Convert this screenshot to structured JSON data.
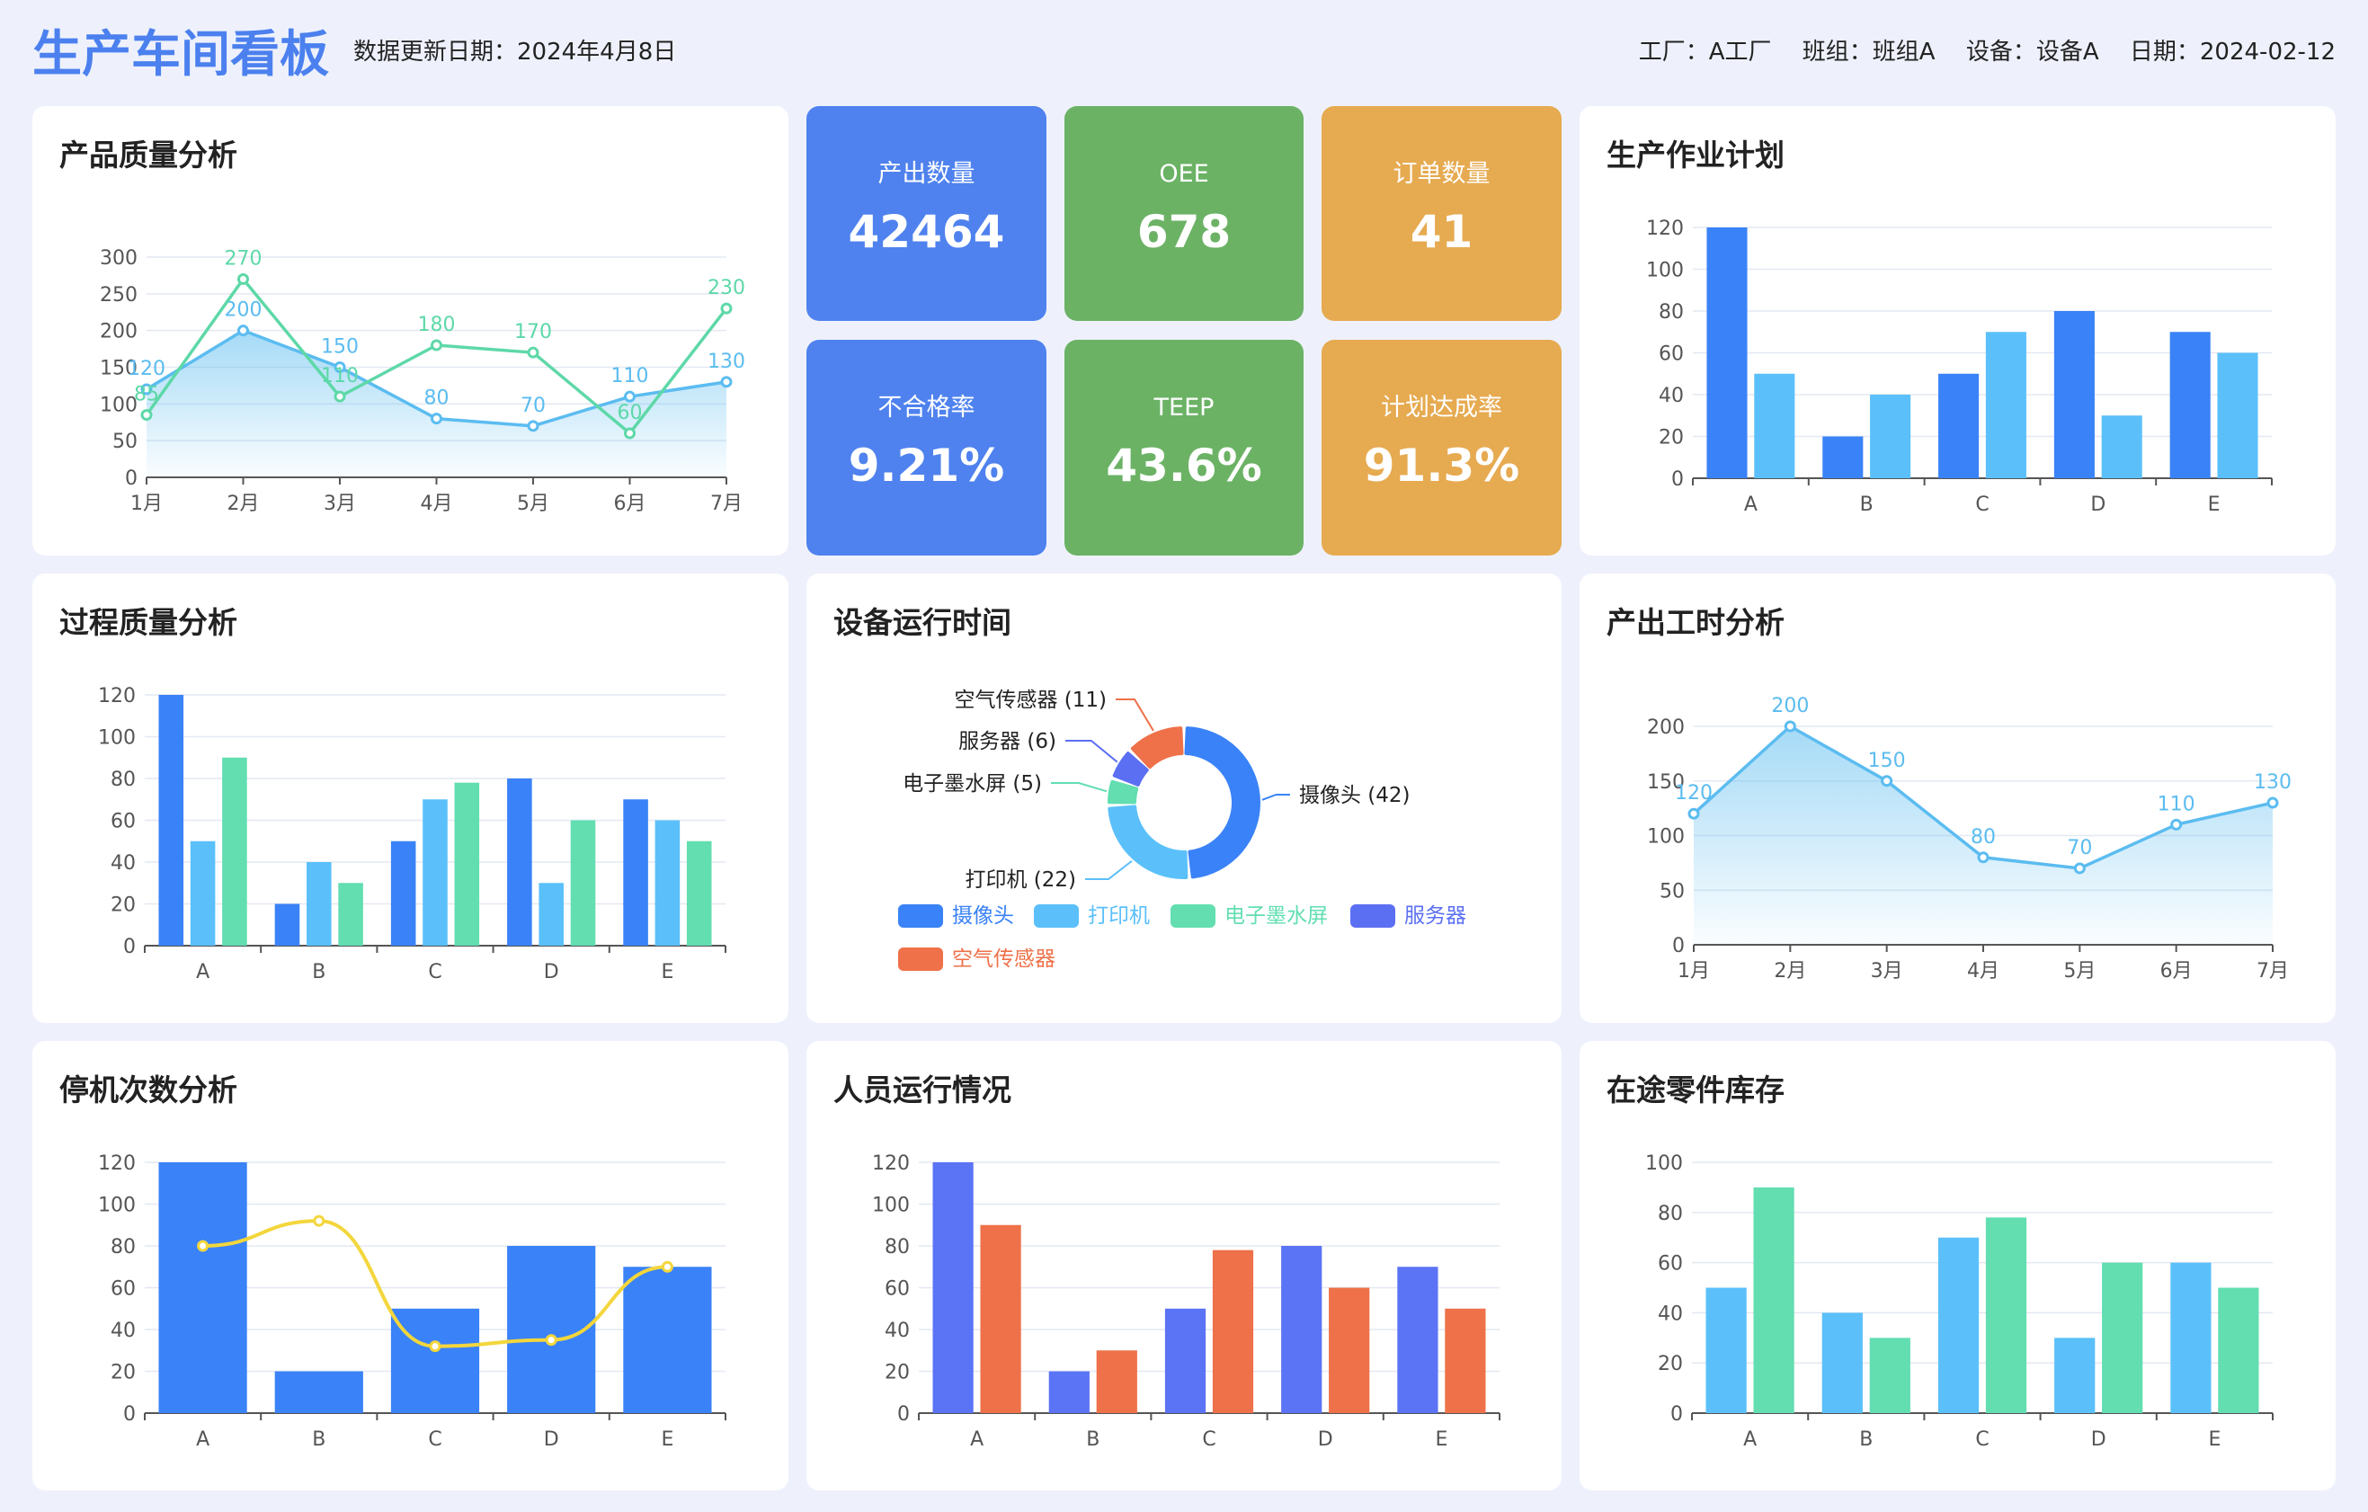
{
  "header": {
    "title": "生产车间看板",
    "update_date": "数据更新日期：2024年4月8日",
    "factory": "工厂：A工厂",
    "team": "班组：班组A",
    "device": "设备：设备A",
    "date": "日期：2024-02-12"
  },
  "kpis": [
    {
      "label": "产出数量",
      "value": "42464",
      "color": "#4f82ee"
    },
    {
      "label": "OEE",
      "value": "678",
      "color": "#6bb265"
    },
    {
      "label": "订单数量",
      "value": "41",
      "color": "#e6aa50"
    },
    {
      "label": "不合格率",
      "value": "9.21%",
      "color": "#4f82ee"
    },
    {
      "label": "TEEP",
      "value": "43.6%",
      "color": "#6bb265"
    },
    {
      "label": "计划达成率",
      "value": "91.3%",
      "color": "#e6aa50"
    }
  ],
  "chart_data": [
    {
      "title": "产品质量分析",
      "type": "area",
      "categories": [
        "1月",
        "2月",
        "3月",
        "4月",
        "5月",
        "6月",
        "7月"
      ],
      "ylim": [
        0,
        300
      ],
      "yticks": [
        0,
        50,
        100,
        150,
        200,
        250,
        300
      ],
      "series": [
        {
          "values": [
            120,
            200,
            150,
            80,
            70,
            110,
            130
          ],
          "color": "#5bbcf0"
        },
        {
          "values": [
            85,
            270,
            110,
            180,
            170,
            60,
            230
          ],
          "color": "#5ed8a8"
        }
      ]
    },
    {
      "title": "生产作业计划",
      "type": "bar",
      "categories": [
        "A",
        "B",
        "C",
        "D",
        "E"
      ],
      "ylim": [
        0,
        120
      ],
      "yticks": [
        0,
        20,
        40,
        60,
        80,
        100,
        120
      ],
      "series": [
        {
          "values": [
            120,
            20,
            50,
            80,
            70
          ],
          "color": "#3a82f7"
        },
        {
          "values": [
            50,
            40,
            70,
            30,
            60
          ],
          "color": "#5bc0fa"
        }
      ]
    },
    {
      "title": "过程质量分析",
      "type": "bar",
      "categories": [
        "A",
        "B",
        "C",
        "D",
        "E"
      ],
      "ylim": [
        0,
        120
      ],
      "yticks": [
        0,
        20,
        40,
        60,
        80,
        100,
        120
      ],
      "series": [
        {
          "values": [
            120,
            20,
            50,
            80,
            70
          ],
          "color": "#3a82f7"
        },
        {
          "values": [
            50,
            40,
            70,
            30,
            60
          ],
          "color": "#5bc0fa"
        },
        {
          "values": [
            90,
            30,
            78,
            60,
            50
          ],
          "color": "#62deb1"
        }
      ]
    },
    {
      "title": "设备运行时间",
      "type": "pie",
      "slices": [
        {
          "name": "摄像头",
          "value": 42,
          "color": "#3a82f7"
        },
        {
          "name": "打印机",
          "value": 22,
          "color": "#5bc0fa"
        },
        {
          "name": "电子墨水屏",
          "value": 5,
          "color": "#62deb1"
        },
        {
          "name": "服务器",
          "value": 6,
          "color": "#5b6ff2"
        },
        {
          "name": "空气传感器",
          "value": 11,
          "color": "#ee7149"
        }
      ],
      "labels": [
        "摄像头 (42)",
        "打印机 (22)",
        "电子墨水屏 (5)",
        "服务器 (6)",
        "空气传感器 (11)"
      ]
    },
    {
      "title": "产出工时分析",
      "type": "area",
      "categories": [
        "1月",
        "2月",
        "3月",
        "4月",
        "5月",
        "6月",
        "7月"
      ],
      "ylim": [
        0,
        200
      ],
      "yticks": [
        0,
        50,
        100,
        150,
        200
      ],
      "series": [
        {
          "values": [
            120,
            200,
            150,
            80,
            70,
            110,
            130
          ],
          "color": "#5bbcf0"
        }
      ]
    },
    {
      "title": "停机次数分析",
      "type": "bar",
      "categories": [
        "A",
        "B",
        "C",
        "D",
        "E"
      ],
      "ylim": [
        0,
        120
      ],
      "yticks": [
        0,
        20,
        40,
        60,
        80,
        100,
        120
      ],
      "series": [
        {
          "values": [
            120,
            20,
            50,
            80,
            70
          ],
          "color": "#3a82f7",
          "kind": "bar"
        },
        {
          "values": [
            80,
            92,
            32,
            35,
            70
          ],
          "color": "#f3d63c",
          "kind": "line"
        }
      ]
    },
    {
      "title": "人员运行情况",
      "type": "bar",
      "categories": [
        "A",
        "B",
        "C",
        "D",
        "E"
      ],
      "ylim": [
        0,
        120
      ],
      "yticks": [
        0,
        20,
        40,
        60,
        80,
        100,
        120
      ],
      "series": [
        {
          "values": [
            120,
            20,
            50,
            80,
            70
          ],
          "color": "#5b73f5"
        },
        {
          "values": [
            90,
            30,
            78,
            60,
            50
          ],
          "color": "#ee7149"
        }
      ]
    },
    {
      "title": "在途零件库存",
      "type": "bar",
      "categories": [
        "A",
        "B",
        "C",
        "D",
        "E"
      ],
      "ylim": [
        0,
        100
      ],
      "yticks": [
        0,
        20,
        40,
        60,
        80,
        100
      ],
      "series": [
        {
          "values": [
            50,
            40,
            70,
            30,
            60
          ],
          "color": "#5bc0fa"
        },
        {
          "values": [
            90,
            30,
            78,
            60,
            50
          ],
          "color": "#62deb1"
        }
      ]
    }
  ]
}
